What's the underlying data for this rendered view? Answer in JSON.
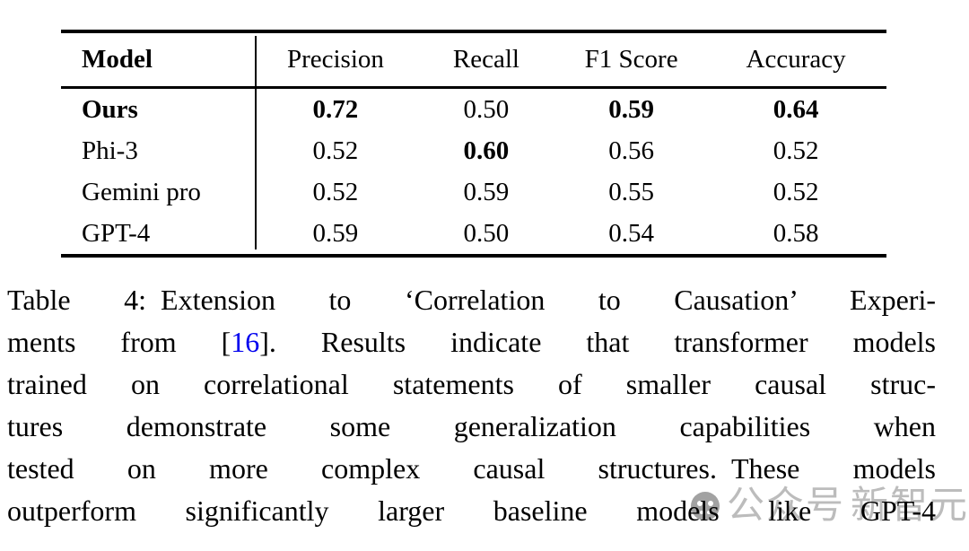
{
  "table": {
    "header": {
      "model": "Model",
      "cols": [
        "Precision",
        "Recall",
        "F1 Score",
        "Accuracy"
      ]
    },
    "rows": [
      {
        "model": "Ours",
        "model_bold": true,
        "cells": [
          {
            "v": "0.72",
            "b": true
          },
          {
            "v": "0.50",
            "b": false
          },
          {
            "v": "0.59",
            "b": true
          },
          {
            "v": "0.64",
            "b": true
          }
        ]
      },
      {
        "model": "Phi-3",
        "model_bold": false,
        "cells": [
          {
            "v": "0.52",
            "b": false
          },
          {
            "v": "0.60",
            "b": true
          },
          {
            "v": "0.56",
            "b": false
          },
          {
            "v": "0.52",
            "b": false
          }
        ]
      },
      {
        "model": "Gemini pro",
        "model_bold": false,
        "cells": [
          {
            "v": "0.52",
            "b": false
          },
          {
            "v": "0.59",
            "b": false
          },
          {
            "v": "0.55",
            "b": false
          },
          {
            "v": "0.52",
            "b": false
          }
        ]
      },
      {
        "model": "GPT-4",
        "model_bold": false,
        "cells": [
          {
            "v": "0.59",
            "b": false
          },
          {
            "v": "0.50",
            "b": false
          },
          {
            "v": "0.54",
            "b": false
          },
          {
            "v": "0.58",
            "b": false
          }
        ]
      }
    ]
  },
  "caption": {
    "line1": "Table 4: Extension to ‘Correlation to Causation’ Experi-",
    "line2_pre": "ments from [",
    "line2_ref": "16",
    "line2_post": "]. Results indicate that transformer models",
    "line3": "trained on correlational statements of smaller causal struc-",
    "line4": "tures demonstrate some generalization capabilities when",
    "line5": "tested on more complex causal structures. These models",
    "line6": "outperform significantly larger baseline models like GPT-4",
    "ref_color": "#0000ee"
  },
  "watermark": {
    "prefix": "公众号",
    "name": "新智元",
    "color": "#bcbcbc"
  }
}
